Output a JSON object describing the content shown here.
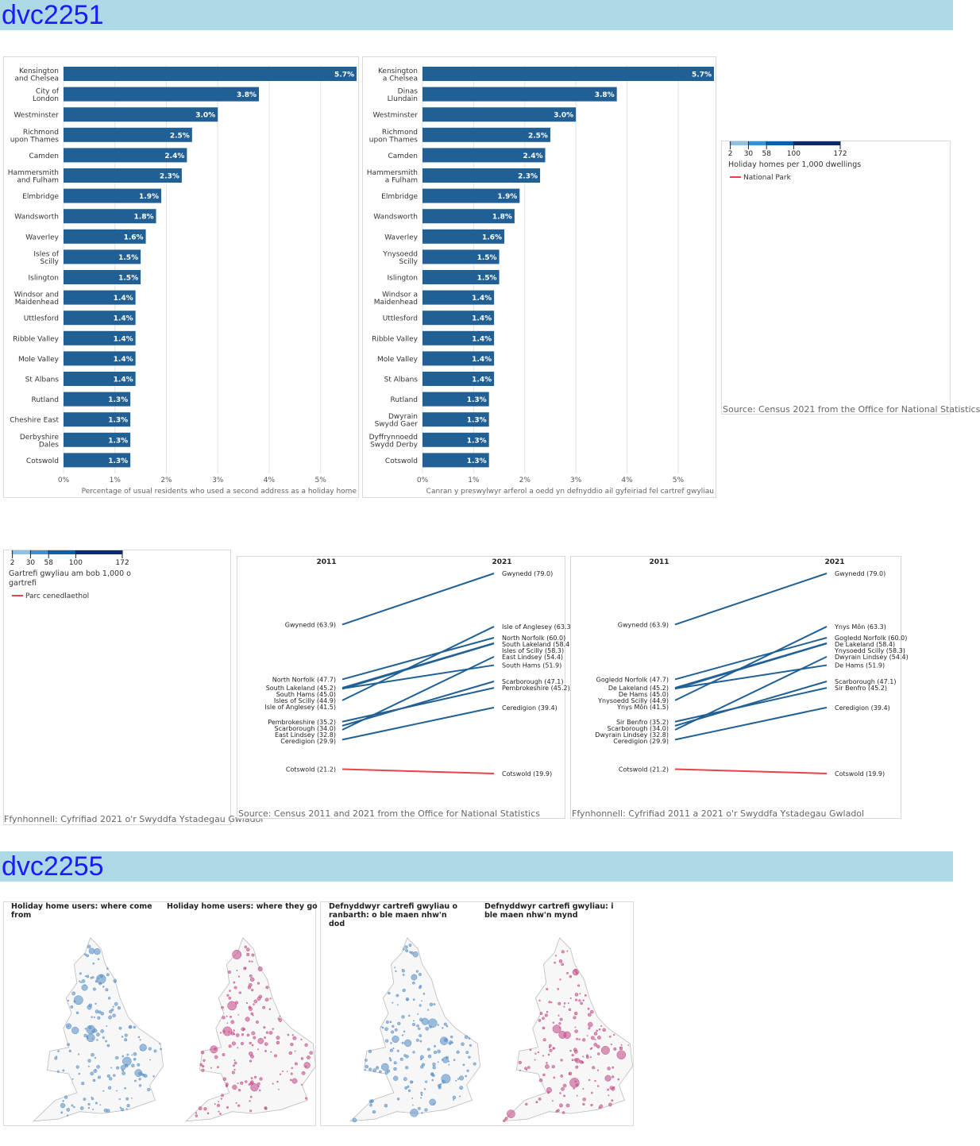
{
  "sections": [
    {
      "title": "dvc2251"
    },
    {
      "title": "dvc2255"
    }
  ],
  "colors": {
    "bar": "#206095",
    "line": "#206095",
    "park": "#e8424b",
    "banner": "#add8e6",
    "bubble_from": "#5e93c7",
    "bubble_to": "#c4508a"
  },
  "chart_data": [
    {
      "type": "bar",
      "categories": [
        "Kensington and Chelsea",
        "City of London",
        "Westminster",
        "Richmond upon Thames",
        "Camden",
        "Hammersmith and Fulham",
        "Elmbridge",
        "Wandsworth",
        "Waverley",
        "Isles of Scilly",
        "Islington",
        "Windsor and Maidenhead",
        "Uttlesford",
        "Ribble Valley",
        "Mole Valley",
        "St Albans",
        "Rutland",
        "Cheshire East",
        "Derbyshire Dales",
        "Cotswold"
      ],
      "values": [
        5.7,
        3.8,
        3.0,
        2.5,
        2.4,
        2.3,
        1.9,
        1.8,
        1.6,
        1.5,
        1.5,
        1.4,
        1.4,
        1.4,
        1.4,
        1.4,
        1.3,
        1.3,
        1.3,
        1.3
      ],
      "xlabel": "Percentage of usual residents who used a second address as a holiday home",
      "xticks": [
        "0%",
        "1%",
        "2%",
        "3%",
        "4%",
        "5%"
      ],
      "xlim": [
        0,
        5.7
      ]
    },
    {
      "type": "bar",
      "categories": [
        "Kensington a Chelsea",
        "Dinas Llundain",
        "Westminster",
        "Richmond upon Thames",
        "Camden",
        "Hammersmith a Fulham",
        "Elmbridge",
        "Wandsworth",
        "Waverley",
        "Ynysoedd Scilly",
        "Islington",
        "Windsor a Maidenhead",
        "Uttlesford",
        "Ribble Valley",
        "Mole Valley",
        "St Albans",
        "Rutland",
        "Dwyrain Swydd Gaer",
        "Dyffrynnoedd Swydd Derby",
        "Cotswold"
      ],
      "values": [
        5.7,
        3.8,
        3.0,
        2.5,
        2.4,
        2.3,
        1.9,
        1.8,
        1.6,
        1.5,
        1.5,
        1.4,
        1.4,
        1.4,
        1.4,
        1.4,
        1.3,
        1.3,
        1.3,
        1.3
      ],
      "xlabel": "Canran y preswylwyr arferol a oedd yn defnyddio ail gyfeiriad fel cartref gwyliau",
      "xticks": [
        "0%",
        "1%",
        "2%",
        "3%",
        "4%",
        "5%"
      ],
      "xlim": [
        0,
        5.7
      ]
    },
    {
      "type": "line",
      "x": [
        "2011",
        "2021"
      ],
      "series": [
        {
          "name": "Gwynedd",
          "values": [
            63.9,
            79.0
          ]
        },
        {
          "name": "North Norfolk",
          "values": [
            47.7,
            60.0
          ]
        },
        {
          "name": "South Lakeland",
          "values": [
            45.2,
            58.4
          ]
        },
        {
          "name": "South Hams",
          "values": [
            45.0,
            51.9
          ]
        },
        {
          "name": "Isles of Scilly",
          "values": [
            44.9,
            58.3
          ]
        },
        {
          "name": "Isle of Anglesey",
          "values": [
            41.5,
            63.3
          ]
        },
        {
          "name": "Pembrokeshire",
          "values": [
            35.2,
            45.2
          ]
        },
        {
          "name": "Scarborough",
          "values": [
            34.0,
            47.1
          ]
        },
        {
          "name": "East Lindsey",
          "values": [
            32.8,
            54.4
          ]
        },
        {
          "name": "Ceredigion",
          "values": [
            29.9,
            39.4
          ]
        },
        {
          "name": "Cotswold",
          "values": [
            21.2,
            19.9
          ]
        }
      ]
    },
    {
      "type": "line",
      "x": [
        "2011",
        "2021"
      ],
      "series": [
        {
          "name": "Gwynedd",
          "values": [
            63.9,
            79.0
          ]
        },
        {
          "name": "Gogledd Norfolk",
          "values": [
            47.7,
            60.0
          ]
        },
        {
          "name": "De Lakeland",
          "values": [
            45.2,
            58.4
          ]
        },
        {
          "name": "De Hams",
          "values": [
            45.0,
            51.9
          ]
        },
        {
          "name": "Ynysoedd Scilly",
          "values": [
            44.9,
            58.3
          ]
        },
        {
          "name": "Ynys Môn",
          "values": [
            41.5,
            63.3
          ]
        },
        {
          "name": "Sir Benfro",
          "values": [
            35.2,
            45.2
          ]
        },
        {
          "name": "Scarborough",
          "values": [
            34.0,
            47.1
          ]
        },
        {
          "name": "Dwyrain Lindsey",
          "values": [
            32.8,
            54.4
          ]
        },
        {
          "name": "Ceredigion",
          "values": [
            29.9,
            39.4
          ]
        },
        {
          "name": "Cotswold",
          "values": [
            21.2,
            19.9
          ]
        }
      ]
    }
  ],
  "legend_en": {
    "breaks": [
      "2",
      "30",
      "58",
      "100",
      "172"
    ],
    "colors": [
      "#d5e8f6",
      "#8fc1e3",
      "#3d8fcf",
      "#0d5fa8",
      "#0d2b6b"
    ],
    "title": "Holiday homes per 1,000 dwellings",
    "park": "National Park",
    "source": "Source: Census 2021 from the Office for National Statistics"
  },
  "legend_cy": {
    "breaks": [
      "2",
      "30",
      "58",
      "100",
      "172"
    ],
    "colors": [
      "#d5e8f6",
      "#8fc1e3",
      "#3d8fcf",
      "#0d5fa8",
      "#0d2b6b"
    ],
    "title": "Gartrefi gwyliau am bob 1,000 o gartrefi",
    "park": "Parc cenedlaethol",
    "source": "Ffynhonnell: Cyfrifiad 2021 o'r Swyddfa Ystadegau Gwladol"
  },
  "slope_en": {
    "source": "Source: Census 2011 and 2021 from the Office for National Statistics"
  },
  "slope_cy": {
    "source": "Ffynhonnell: Cyfrifiad 2011 a 2021 o'r Swyddfa Ystadegau Gwladol"
  },
  "maps": {
    "en_from": "Holiday home users: where come from",
    "en_to": "Holiday home users: where they go",
    "cy_from": "Defnyddwyr cartrefi gwyliau o ranbarth: o ble maen nhw'n dod",
    "cy_to": "Defnyddwyr cartrefi gwyliau: i ble maen nhw'n mynd"
  }
}
